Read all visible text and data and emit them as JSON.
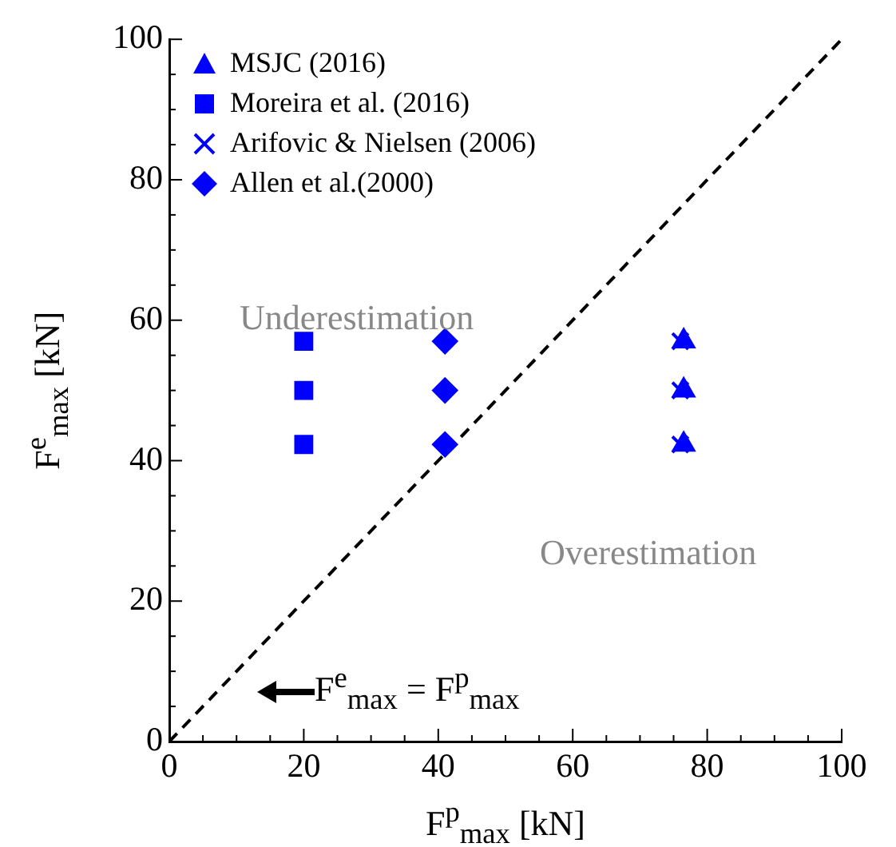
{
  "chart_data": {
    "type": "scatter",
    "xlabel": "F$^{p}$$_{max}$ [kN]",
    "ylabel": "F$^{e}$$_{max}$ [kN]",
    "xlim": [
      0,
      100
    ],
    "ylim": [
      0,
      100
    ],
    "xticks": [
      0,
      {
        "value": 5,
        "label": null
      },
      {
        "value": 10,
        "label": null
      },
      {
        "value": 15,
        "label": null
      },
      20,
      {
        "value": 25,
        "label": null
      },
      {
        "value": 30,
        "label": null
      },
      {
        "value": 35,
        "label": null
      },
      40,
      {
        "value": 45,
        "label": null
      },
      {
        "value": 50,
        "label": null
      },
      {
        "value": 55,
        "label": null
      },
      60,
      {
        "value": 65,
        "label": null
      },
      {
        "value": 70,
        "label": null
      },
      {
        "value": 75,
        "label": null
      },
      80,
      {
        "value": 85,
        "label": null
      },
      {
        "value": 90,
        "label": null
      },
      {
        "value": 95,
        "label": null
      },
      100
    ],
    "yticks": [
      0,
      {
        "value": 5,
        "label": null
      },
      {
        "value": 10,
        "label": null
      },
      {
        "value": 15,
        "label": null
      },
      20,
      {
        "value": 25,
        "label": null
      },
      {
        "value": 30,
        "label": null
      },
      {
        "value": 35,
        "label": null
      },
      40,
      {
        "value": 45,
        "label": null
      },
      {
        "value": 50,
        "label": null
      },
      {
        "value": 55,
        "label": null
      },
      60,
      {
        "value": 65,
        "label": null
      },
      {
        "value": 70,
        "label": null
      },
      {
        "value": 75,
        "label": null
      },
      80,
      {
        "value": 85,
        "label": null
      },
      {
        "value": 90,
        "label": null
      },
      {
        "value": 95,
        "label": null
      },
      100
    ],
    "grid": false,
    "legend": "top left",
    "series": [
      {
        "name": "MSJC (2016)",
        "color": "#0000ff",
        "marker": "triangle",
        "x": [
          76.5,
          76.5,
          76.5
        ],
        "values": [
          57,
          50,
          42.3
        ]
      },
      {
        "name": "Moreira et al. (2016)",
        "color": "#0000ff",
        "marker": "square",
        "x": [
          20,
          20,
          20
        ],
        "values": [
          57,
          50,
          42.3
        ]
      },
      {
        "name": "Arifovic & Nielsen (2006)",
        "color": "#0000ff",
        "marker": "cross",
        "x": [
          76,
          76,
          76
        ],
        "values": [
          57,
          50,
          42.3
        ]
      },
      {
        "name": "Allen et al.(2000)",
        "color": "#0000ff",
        "marker": "diamond",
        "x": [
          41,
          41,
          41
        ],
        "values": [
          57,
          50,
          42.3
        ]
      },
      {
        "type": "line",
        "color": "#000000",
        "line_style": "dashed",
        "marker": "none",
        "x": [
          0,
          100
        ],
        "values": [
          0,
          100
        ]
      }
    ],
    "annotations": [
      "Underestimation",
      "Overestimation",
      "F$^{e}$$_{max}$ = F$^{p}$$_{max}$"
    ]
  }
}
